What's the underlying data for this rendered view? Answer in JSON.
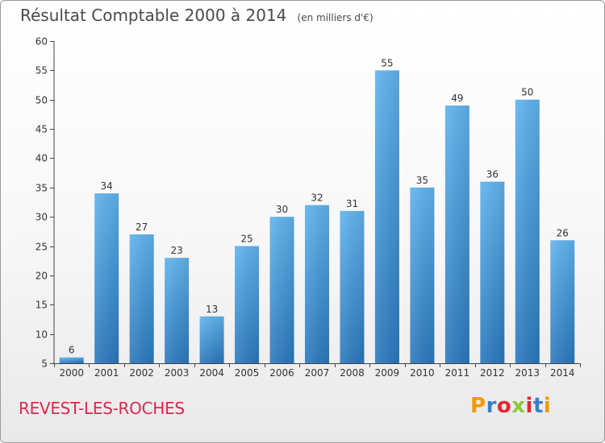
{
  "chart_data": {
    "type": "bar",
    "title": "Résultat Comptable 2000 à 2014",
    "subtitle": "(en milliers d'€)",
    "categories": [
      "2000",
      "2001",
      "2002",
      "2003",
      "2004",
      "2005",
      "2006",
      "2007",
      "2008",
      "2009",
      "2010",
      "2011",
      "2012",
      "2013",
      "2014"
    ],
    "values": [
      6,
      34,
      27,
      23,
      13,
      25,
      30,
      32,
      31,
      55,
      35,
      49,
      36,
      50,
      26
    ],
    "ylim": [
      5,
      60
    ],
    "yticks": [
      5,
      10,
      15,
      20,
      25,
      30,
      35,
      40,
      45,
      50,
      55,
      60
    ],
    "xlabel": "",
    "ylabel": "",
    "grid": false,
    "bar_color": "#3d8fd6"
  },
  "footer": {
    "commune": "REVEST-LES-ROCHES",
    "logo_text": "Proxiti",
    "logo_colors": [
      "#f29a00",
      "#3a7fc9",
      "#e8262f",
      "#8cc63f",
      "#e8262f",
      "#3a7fc9",
      "#f29a00"
    ]
  }
}
